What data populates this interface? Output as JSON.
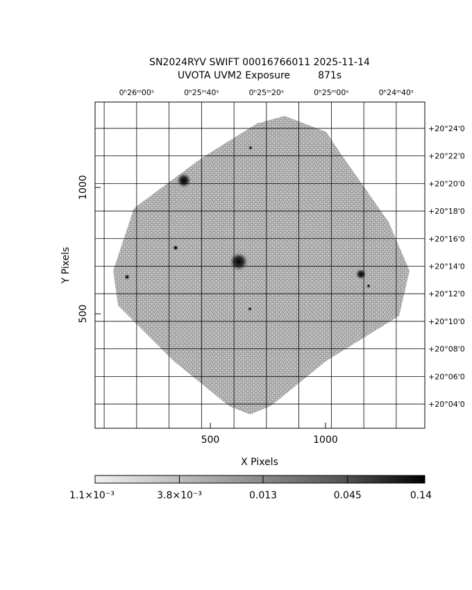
{
  "chart_data": {
    "type": "image",
    "title": "SN2024RYV SWIFT 00016766011 2025-11-14",
    "subtitle": "UVOTA UVM2 Exposure         871s",
    "xlabel": "X Pixels",
    "ylabel": "Y Pixels",
    "xlim": [
      0,
      1431
    ],
    "ylim": [
      47,
      1338
    ],
    "xticks": [
      500,
      1000
    ],
    "yticks": [
      500,
      1000
    ],
    "x2lim": [
      1572.8,
      1471.2
    ],
    "x2ticks": [
      {
        "value": 1560,
        "label": "0ʰ26ᵐ00ˢ"
      },
      {
        "value": 1540,
        "label": "0ʰ25ᵐ40ˢ"
      },
      {
        "value": 1520,
        "label": "0ʰ25ᵐ20ˢ"
      },
      {
        "value": 1500,
        "label": "0ʰ25ᵐ00ˢ"
      },
      {
        "value": 1480,
        "label": "0ʰ24ᵐ40ˢ"
      }
    ],
    "x2grid": [
      1570,
      1560,
      1550,
      1540,
      1530,
      1520,
      1510,
      1500,
      1490,
      1480
    ],
    "y2lim": [
      2.24,
      25.91
    ],
    "y2ticks": [
      {
        "value": 24,
        "label": "+20°24'0"
      },
      {
        "value": 22,
        "label": "+20°22'0"
      },
      {
        "value": 20,
        "label": "+20°20'0"
      },
      {
        "value": 18,
        "label": "+20°18'0"
      },
      {
        "value": 16,
        "label": "+20°16'0"
      },
      {
        "value": 14,
        "label": "+20°14'0"
      },
      {
        "value": 12,
        "label": "+20°12'0"
      },
      {
        "value": 10,
        "label": "+20°10'0"
      },
      {
        "value": 8,
        "label": "+20°08'0"
      },
      {
        "value": 6,
        "label": "+20°06'0"
      },
      {
        "value": 4,
        "label": "+20°04'0"
      }
    ],
    "grid": true,
    "colorbar": {
      "log": true,
      "clim": [
        0.0011,
        0.14
      ],
      "ticks": [
        {
          "value": 0.0011,
          "label": "1.1×10⁻³"
        },
        {
          "value": 0.0038,
          "label": "3.8×10⁻³"
        },
        {
          "value": 0.013,
          "label": "0.013"
        },
        {
          "value": 0.045,
          "label": "0.045"
        },
        {
          "value": 0.14,
          "label": "0.14"
        }
      ]
    }
  }
}
